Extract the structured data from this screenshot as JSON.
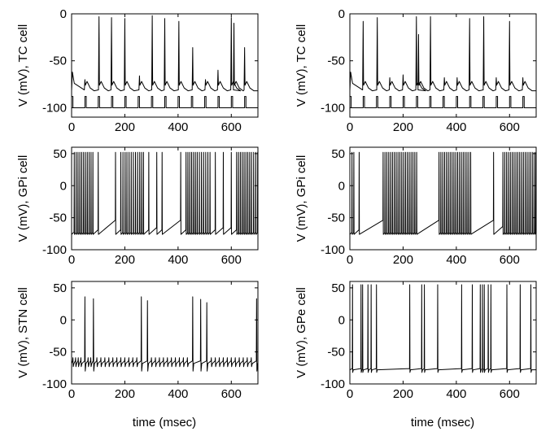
{
  "figure": {
    "xlabel": "time (msec)"
  },
  "chart_data": [
    {
      "type": "line",
      "ylabel": "V (mV), TC cell",
      "xlim": [
        0,
        700
      ],
      "ylim": [
        -110,
        0
      ],
      "xticks": [
        0,
        200,
        400,
        600
      ],
      "yticks": [
        0,
        -50,
        -100
      ],
      "rest": -82,
      "spikes": [
        {
          "t": 50,
          "peak": -70
        },
        {
          "t": 103,
          "peak": -3
        },
        {
          "t": 150,
          "peak": -4
        },
        {
          "t": 200,
          "peak": -5
        },
        {
          "t": 255,
          "peak": -66
        },
        {
          "t": 303,
          "peak": -2
        },
        {
          "t": 350,
          "peak": -5
        },
        {
          "t": 403,
          "peak": -8
        },
        {
          "t": 455,
          "peak": -36
        },
        {
          "t": 503,
          "peak": -70
        },
        {
          "t": 550,
          "peak": -60
        },
        {
          "t": 600,
          "peak": -4
        },
        {
          "t": 610,
          "peak": -10
        },
        {
          "t": 650,
          "peak": -36
        }
      ],
      "stimulus": {
        "times": [
          0,
          50,
          100,
          150,
          200,
          250,
          300,
          350,
          400,
          450,
          500,
          550,
          600,
          650
        ],
        "width": 5,
        "low": -100,
        "high": -88
      }
    },
    {
      "type": "line",
      "ylabel": "V (mV), TC cell",
      "xlim": [
        0,
        700
      ],
      "ylim": [
        -110,
        0
      ],
      "xticks": [
        0,
        200,
        400,
        600
      ],
      "yticks": [
        0,
        -50,
        -100
      ],
      "rest": -82,
      "spikes": [
        {
          "t": 50,
          "peak": -8
        },
        {
          "t": 103,
          "peak": -4
        },
        {
          "t": 150,
          "peak": -68
        },
        {
          "t": 200,
          "peak": -65
        },
        {
          "t": 250,
          "peak": -3
        },
        {
          "t": 258,
          "peak": -22
        },
        {
          "t": 303,
          "peak": -3
        },
        {
          "t": 355,
          "peak": -68
        },
        {
          "t": 403,
          "peak": -68
        },
        {
          "t": 450,
          "peak": -5
        },
        {
          "t": 503,
          "peak": -3
        },
        {
          "t": 550,
          "peak": -68
        },
        {
          "t": 600,
          "peak": -8
        },
        {
          "t": 650,
          "peak": -68
        }
      ],
      "stimulus": {
        "times": [
          0,
          50,
          100,
          150,
          200,
          250,
          300,
          350,
          400,
          450,
          500,
          550,
          600,
          650
        ],
        "width": 5,
        "low": -100,
        "high": -88
      }
    },
    {
      "type": "line",
      "ylabel": "V (mV), GPi cell",
      "xlim": [
        0,
        700
      ],
      "ylim": [
        -100,
        60
      ],
      "xticks": [
        0,
        200,
        400,
        600
      ],
      "yticks": [
        50,
        0,
        -50,
        -100
      ],
      "trough": -76,
      "peak": 52,
      "spike_times": [
        10,
        17,
        24,
        31,
        38,
        45,
        52,
        59,
        66,
        73,
        80,
        100,
        165,
        185,
        193,
        201,
        208,
        216,
        224,
        232,
        240,
        248,
        256,
        263,
        270,
        290,
        320,
        340,
        410,
        430,
        437,
        444,
        451,
        458,
        465,
        472,
        480,
        488,
        496,
        504,
        512,
        520,
        540,
        570,
        600,
        620,
        627,
        634,
        641,
        648,
        655,
        662,
        669,
        676,
        684,
        692,
        699
      ]
    },
    {
      "type": "line",
      "ylabel": "V (mV), GPi cell",
      "xlim": [
        0,
        700
      ],
      "ylim": [
        -100,
        60
      ],
      "xticks": [
        0,
        200,
        400,
        600
      ],
      "yticks": [
        50,
        0,
        -50,
        -100
      ],
      "trough": -76,
      "peak": 52,
      "spike_times": [
        8,
        15,
        35,
        125,
        132,
        139,
        146,
        153,
        160,
        167,
        174,
        181,
        188,
        195,
        202,
        209,
        216,
        223,
        230,
        237,
        244,
        251,
        335,
        342,
        349,
        356,
        363,
        370,
        377,
        384,
        391,
        398,
        405,
        412,
        419,
        426,
        433,
        440,
        447,
        454,
        540,
        575,
        582,
        589,
        596,
        603,
        610,
        617,
        624,
        631,
        638,
        645,
        652,
        659,
        666,
        673,
        680,
        687,
        694,
        699
      ]
    },
    {
      "type": "line",
      "ylabel": "V (mV), STN cell",
      "xlim": [
        0,
        700
      ],
      "ylim": [
        -100,
        60
      ],
      "xticks": [
        0,
        200,
        400,
        600
      ],
      "yticks": [
        50,
        0,
        -50,
        -100
      ],
      "rest": -68,
      "spikes": [
        {
          "t": 50,
          "peak": 36
        },
        {
          "t": 82,
          "peak": 33
        },
        {
          "t": 262,
          "peak": 36
        },
        {
          "t": 285,
          "peak": 30
        },
        {
          "t": 455,
          "peak": 36
        },
        {
          "t": 485,
          "peak": 32
        },
        {
          "t": 508,
          "peak": 27
        },
        {
          "t": 695,
          "peak": 33
        }
      ],
      "ripple_times": [
        5,
        15,
        25,
        35,
        62,
        72,
        95,
        110,
        125,
        140,
        155,
        170,
        185,
        200,
        215,
        230,
        245,
        300,
        315,
        330,
        345,
        360,
        375,
        390,
        405,
        420,
        435,
        525,
        540,
        555,
        570,
        585,
        600,
        615,
        630,
        645,
        660,
        675
      ]
    },
    {
      "type": "line",
      "ylabel": "V (mV), GPe cell",
      "xlim": [
        0,
        700
      ],
      "ylim": [
        -100,
        60
      ],
      "xticks": [
        0,
        200,
        400,
        600
      ],
      "yticks": [
        50,
        0,
        -50,
        -100
      ],
      "rest": -78,
      "peak": 55,
      "spike_times": [
        10,
        42,
        48,
        68,
        80,
        100,
        225,
        270,
        280,
        330,
        420,
        460,
        490,
        498,
        505,
        520,
        530,
        590,
        640,
        680
      ]
    }
  ]
}
